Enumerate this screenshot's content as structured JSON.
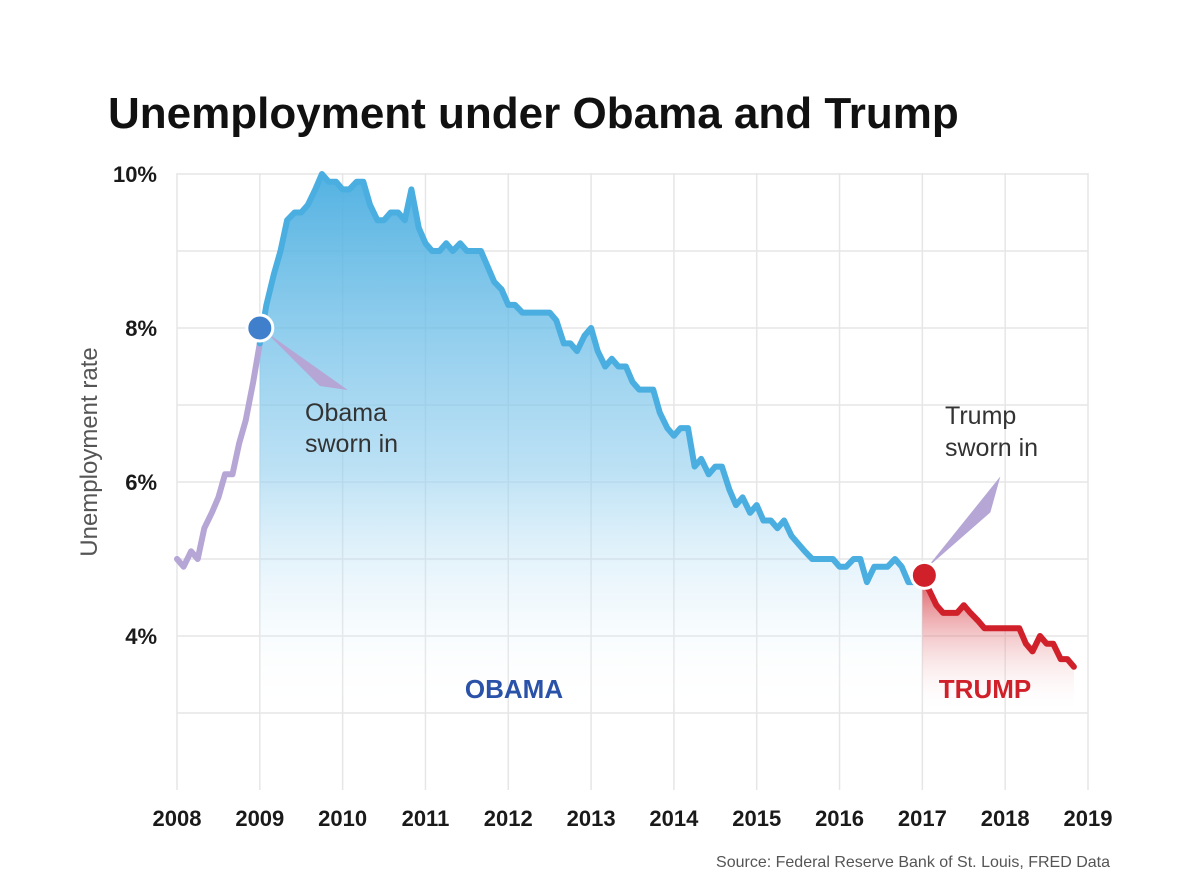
{
  "chart_data": {
    "type": "area",
    "title": "Unemployment under Obama and Trump",
    "ylabel": "Unemployment rate",
    "xlabel": "",
    "source": "Source: Federal Reserve Bank of St. Louis, FRED Data",
    "x_ticks": [
      "2008",
      "2009",
      "2010",
      "2011",
      "2012",
      "2013",
      "2014",
      "2015",
      "2016",
      "2017",
      "2018",
      "2019"
    ],
    "y_ticks": [
      {
        "value": 4,
        "label": "4%"
      },
      {
        "value": 6,
        "label": "6%"
      },
      {
        "value": 8,
        "label": "8%"
      },
      {
        "value": 10,
        "label": "10%"
      }
    ],
    "xlim": [
      2008,
      2019
    ],
    "ylim": [
      2,
      10
    ],
    "grid": true,
    "era_labels": {
      "obama": "OBAMA",
      "trump": "TRUMP"
    },
    "annotations": [
      {
        "id": "obama",
        "lines": [
          "Obama",
          "sworn in"
        ],
        "x": 2009.0,
        "y": 8.0
      },
      {
        "id": "trump",
        "lines": [
          "Trump",
          "sworn in"
        ],
        "x": 2017.0,
        "y": 4.8
      }
    ],
    "colors": {
      "pre": "#b5a6d6",
      "obama": "#4aaee0",
      "obama_dot": "#3f7fcb",
      "trump": "#d0202a",
      "obama_label": "#2a52a8",
      "trump_label": "#d0202a"
    },
    "series": [
      {
        "segment": "pre",
        "x": [
          2008.0,
          2008.08,
          2008.17,
          2008.25,
          2008.33,
          2008.42,
          2008.5,
          2008.58,
          2008.67,
          2008.75,
          2008.83,
          2008.92,
          2009.0
        ],
        "y": [
          5.0,
          4.9,
          5.1,
          5.0,
          5.4,
          5.6,
          5.8,
          6.1,
          6.1,
          6.5,
          6.8,
          7.3,
          7.8
        ]
      },
      {
        "segment": "obama",
        "x": [
          2009.0,
          2009.08,
          2009.17,
          2009.25,
          2009.33,
          2009.42,
          2009.5,
          2009.58,
          2009.67,
          2009.75,
          2009.83,
          2009.92,
          2010.0,
          2010.08,
          2010.17,
          2010.25,
          2010.33,
          2010.42,
          2010.5,
          2010.58,
          2010.67,
          2010.75,
          2010.83,
          2010.92,
          2011.0,
          2011.08,
          2011.17,
          2011.25,
          2011.33,
          2011.42,
          2011.5,
          2011.58,
          2011.67,
          2011.75,
          2011.83,
          2011.92,
          2012.0,
          2012.08,
          2012.17,
          2012.25,
          2012.33,
          2012.42,
          2012.5,
          2012.58,
          2012.67,
          2012.75,
          2012.83,
          2012.92,
          2013.0,
          2013.08,
          2013.17,
          2013.25,
          2013.33,
          2013.42,
          2013.5,
          2013.58,
          2013.67,
          2013.75,
          2013.83,
          2013.92,
          2014.0,
          2014.08,
          2014.17,
          2014.25,
          2014.33,
          2014.42,
          2014.5,
          2014.58,
          2014.67,
          2014.75,
          2014.83,
          2014.92,
          2015.0,
          2015.08,
          2015.17,
          2015.25,
          2015.33,
          2015.42,
          2015.5,
          2015.58,
          2015.67,
          2015.75,
          2015.83,
          2015.92,
          2016.0,
          2016.08,
          2016.17,
          2016.25,
          2016.33,
          2016.42,
          2016.5,
          2016.58,
          2016.67,
          2016.75,
          2016.83,
          2016.92
        ],
        "y": [
          7.8,
          8.3,
          8.7,
          9.0,
          9.4,
          9.5,
          9.5,
          9.6,
          9.8,
          10.0,
          9.9,
          9.9,
          9.8,
          9.8,
          9.9,
          9.9,
          9.6,
          9.4,
          9.4,
          9.5,
          9.5,
          9.4,
          9.8,
          9.3,
          9.1,
          9.0,
          9.0,
          9.1,
          9.0,
          9.1,
          9.0,
          9.0,
          9.0,
          8.8,
          8.6,
          8.5,
          8.3,
          8.3,
          8.2,
          8.2,
          8.2,
          8.2,
          8.2,
          8.1,
          7.8,
          7.8,
          7.7,
          7.9,
          8.0,
          7.7,
          7.5,
          7.6,
          7.5,
          7.5,
          7.3,
          7.2,
          7.2,
          7.2,
          6.9,
          6.7,
          6.6,
          6.7,
          6.7,
          6.2,
          6.3,
          6.1,
          6.2,
          6.2,
          5.9,
          5.7,
          5.8,
          5.6,
          5.7,
          5.5,
          5.5,
          5.4,
          5.5,
          5.3,
          5.2,
          5.1,
          5.0,
          5.0,
          5.0,
          5.0,
          4.9,
          4.9,
          5.0,
          5.0,
          4.7,
          4.9,
          4.9,
          4.9,
          5.0,
          4.9,
          4.7,
          4.7
        ]
      },
      {
        "segment": "trump",
        "x": [
          2017.0,
          2017.08,
          2017.17,
          2017.25,
          2017.33,
          2017.42,
          2017.5,
          2017.58,
          2017.67,
          2017.75,
          2017.83,
          2017.92,
          2018.0,
          2018.08,
          2018.17,
          2018.25,
          2018.33,
          2018.42,
          2018.5,
          2018.58,
          2018.67,
          2018.75,
          2018.83
        ],
        "y": [
          4.7,
          4.6,
          4.4,
          4.3,
          4.3,
          4.3,
          4.4,
          4.3,
          4.2,
          4.1,
          4.1,
          4.1,
          4.1,
          4.1,
          4.1,
          3.9,
          3.8,
          4.0,
          3.9,
          3.9,
          3.7,
          3.7,
          3.6
        ]
      }
    ]
  }
}
